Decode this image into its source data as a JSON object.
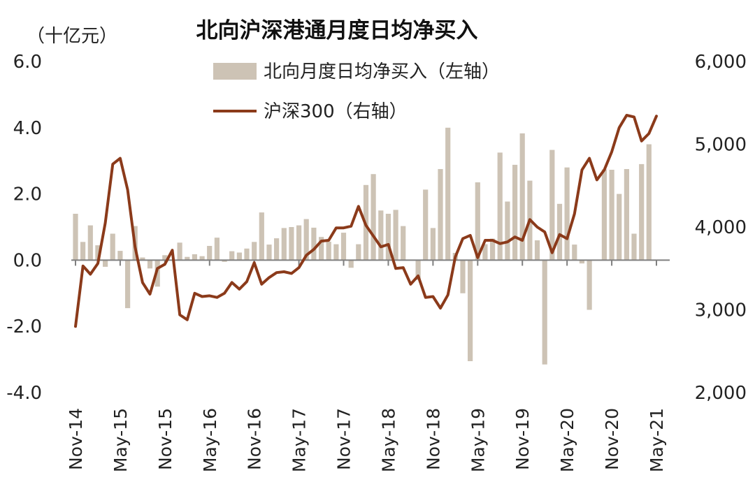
{
  "chart_data": {
    "type": "bar+line",
    "title": "北向沪深港通月度日均净买入",
    "left_axis_unit": "（十亿元）",
    "left_ticks": [
      "6.0",
      "4.0",
      "2.0",
      "0.0",
      "-2.0",
      "-4.0"
    ],
    "left_tick_values": [
      6,
      4,
      2,
      0,
      -2,
      -4
    ],
    "right_ticks": [
      "6,000",
      "5,000",
      "4,000",
      "3,000",
      "2,000"
    ],
    "right_tick_values": [
      6000,
      5000,
      4000,
      3000,
      2000
    ],
    "ylim_left": [
      -4,
      6
    ],
    "ylim_right": [
      2000,
      6000
    ],
    "x_tick_labels": [
      "Nov-14",
      "May-15",
      "Nov-15",
      "May-16",
      "Nov-16",
      "May-17",
      "Nov-17",
      "May-18",
      "Nov-18",
      "May-19",
      "Nov-19",
      "May-20",
      "Nov-20",
      "May-21"
    ],
    "x_tick_month_index": [
      0,
      6,
      12,
      18,
      24,
      30,
      36,
      42,
      48,
      54,
      60,
      66,
      72,
      78
    ],
    "months_count": 79,
    "series": [
      {
        "name": "北向月度日均净买入（左轴）",
        "axis": "left",
        "type": "bar",
        "color": "#cdc3b5",
        "values": [
          1.4,
          0.55,
          1.05,
          0.45,
          -0.2,
          0.8,
          0.28,
          -1.45,
          1.03,
          0.08,
          -0.25,
          -0.8,
          0.15,
          0.0,
          0.53,
          0.1,
          0.18,
          0.12,
          0.43,
          0.68,
          -0.05,
          0.27,
          0.23,
          0.35,
          0.55,
          1.44,
          0.47,
          0.66,
          0.97,
          1.0,
          1.05,
          1.24,
          0.98,
          0.7,
          0.56,
          0.48,
          0.83,
          -0.23,
          0.48,
          2.27,
          2.6,
          1.5,
          1.4,
          1.52,
          1.03,
          0.0,
          -0.6,
          2.13,
          0.97,
          2.75,
          4.0,
          0.22,
          -1.0,
          -3.05,
          2.35,
          0.48,
          0.65,
          3.25,
          1.77,
          2.88,
          3.83,
          2.4,
          0.6,
          -3.15,
          3.33,
          1.7,
          2.8,
          0.47,
          -0.1,
          -1.5,
          0.0,
          2.74,
          2.73,
          2.0,
          2.75,
          0.8,
          2.9,
          3.5,
          0.0
        ]
      },
      {
        "name": "沪深300（右轴）",
        "axis": "right",
        "type": "line",
        "color": "#8b3a1a",
        "values": [
          2800,
          3530,
          3430,
          3560,
          4050,
          4760,
          4830,
          4450,
          3760,
          3330,
          3190,
          3500,
          3550,
          3720,
          2940,
          2880,
          3200,
          3160,
          3170,
          3150,
          3200,
          3330,
          3250,
          3340,
          3570,
          3310,
          3390,
          3450,
          3460,
          3440,
          3510,
          3660,
          3730,
          3830,
          3840,
          3990,
          3990,
          4010,
          4250,
          4020,
          3890,
          3760,
          3790,
          3500,
          3510,
          3310,
          3410,
          3150,
          3160,
          3020,
          3180,
          3640,
          3860,
          3900,
          3630,
          3840,
          3840,
          3800,
          3820,
          3880,
          3840,
          4090,
          4000,
          3940,
          3690,
          3910,
          3860,
          4160,
          4690,
          4830,
          4570,
          4690,
          4910,
          5200,
          5350,
          5330,
          5040,
          5130,
          5340
        ]
      }
    ],
    "legend": [
      {
        "label": "北向月度日均净买入（左轴）",
        "symbol": "box",
        "color": "#cdc3b5"
      },
      {
        "label": "沪深300（右轴）",
        "symbol": "line",
        "color": "#8b3a1a"
      }
    ],
    "negative_tick_color": "#e0231c",
    "axis_color": "#7f7f7f"
  }
}
